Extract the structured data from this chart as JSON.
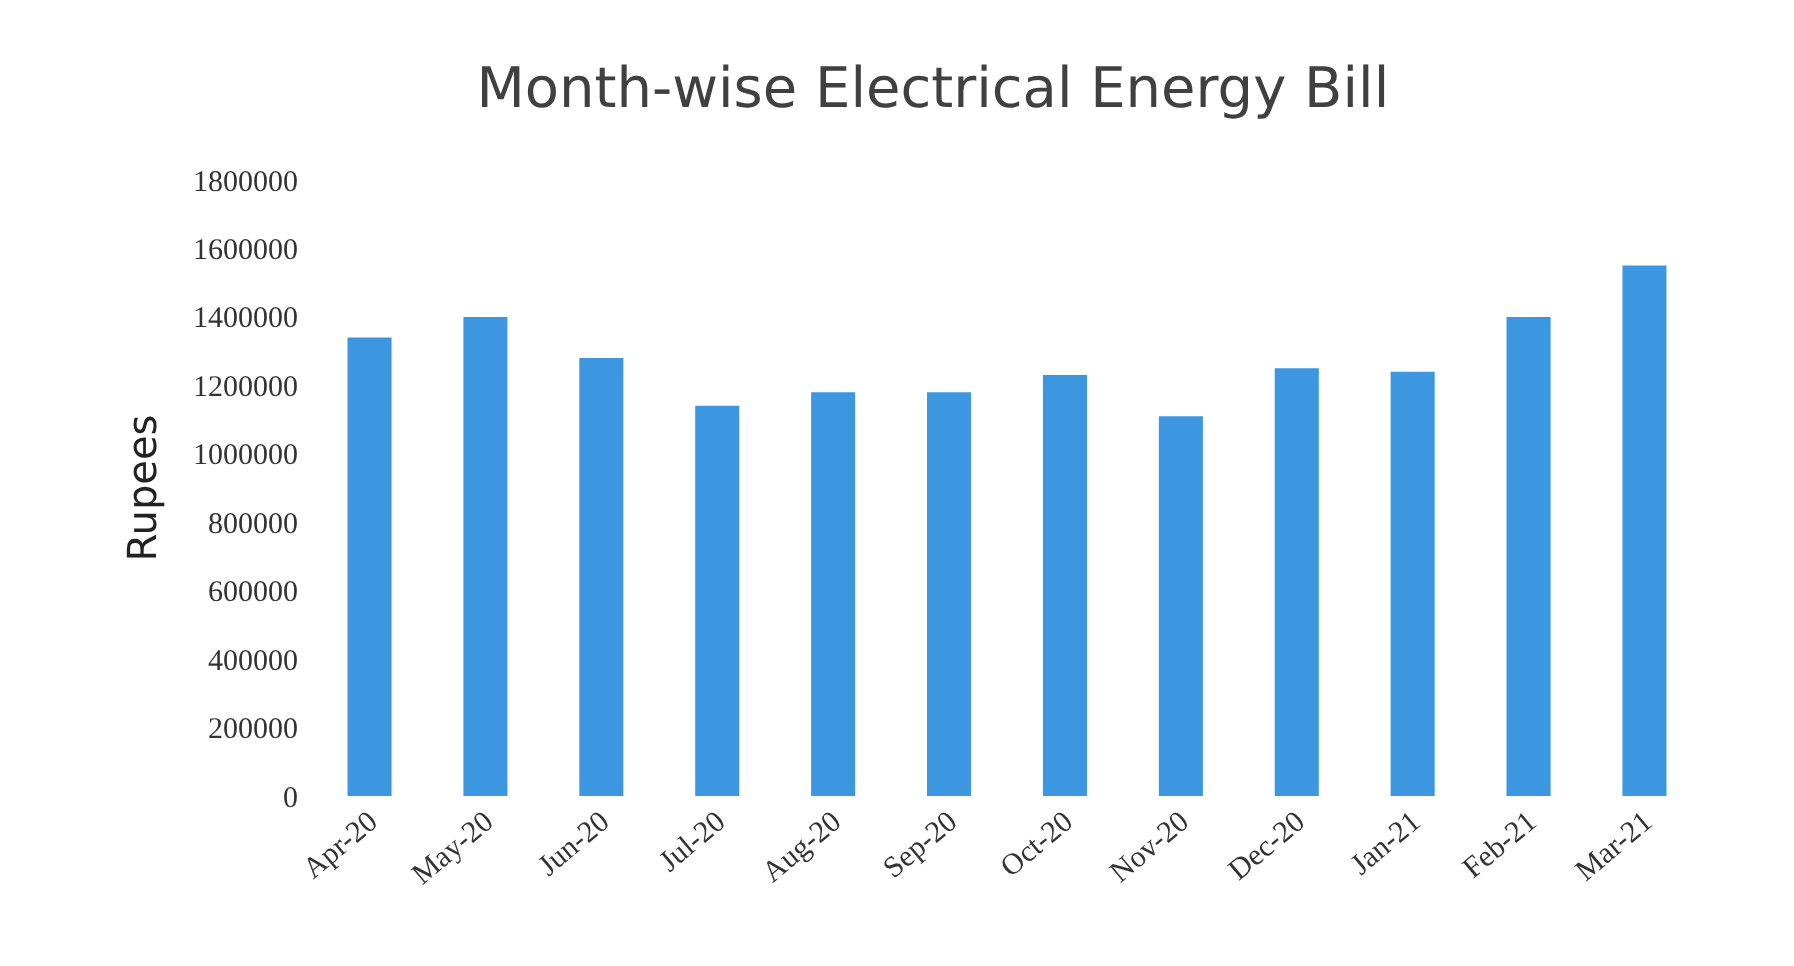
{
  "chart_data": {
    "type": "bar",
    "title": "Month-wise Electrical Energy Bill",
    "ylabel": "Rupees",
    "categories": [
      "Apr-20",
      "May-20",
      "Jun-20",
      "Jul-20",
      "Aug-20",
      "Sep-20",
      "Oct-20",
      "Nov-20",
      "Dec-20",
      "Jan-21",
      "Feb-21",
      "Mar-21"
    ],
    "values": [
      1340000,
      1400000,
      1280000,
      1140000,
      1180000,
      1180000,
      1230000,
      1110000,
      1250000,
      1240000,
      1400000,
      1550000
    ],
    "color": "#3c96e0",
    "ylim": [
      0,
      1800000
    ],
    "yticks": [
      0,
      200000,
      400000,
      600000,
      800000,
      1000000,
      1200000,
      1400000,
      1600000,
      1800000
    ],
    "grid": false
  }
}
